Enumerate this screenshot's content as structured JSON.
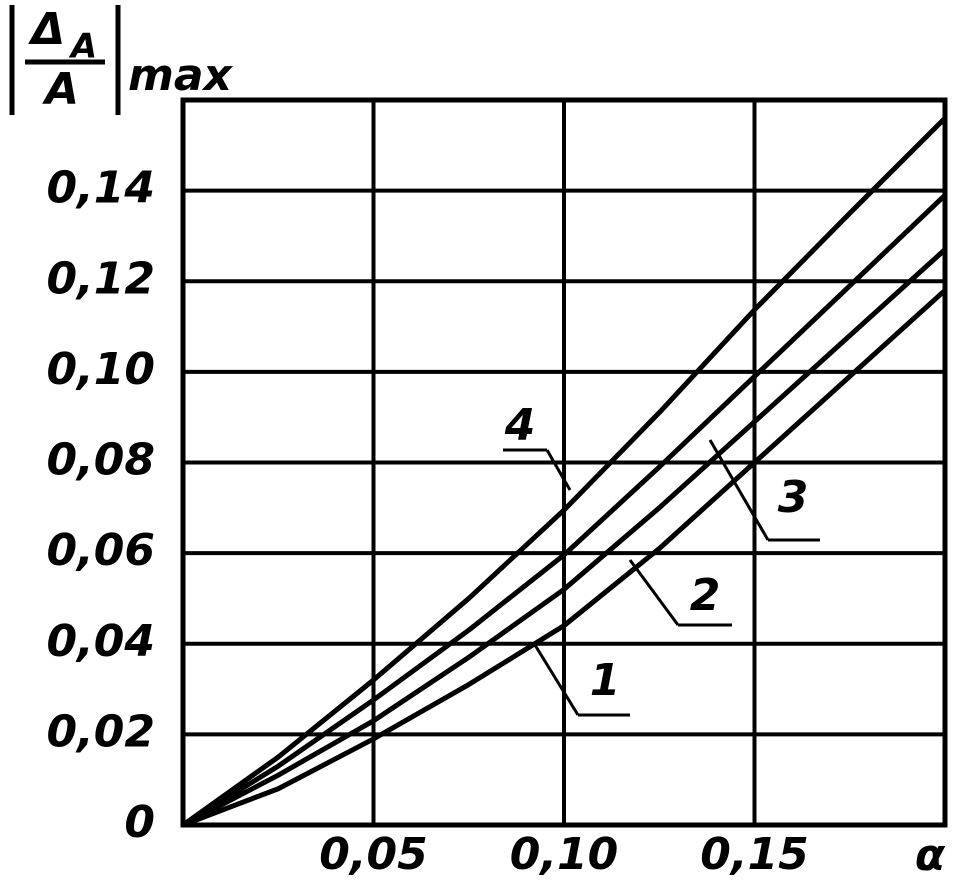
{
  "chart_data": {
    "type": "line",
    "ylabel_parts": {
      "numerator": "Δ",
      "numerator_sub": "A",
      "denominator": "A",
      "suffix": "max"
    },
    "xlabel": "α",
    "x": [
      0,
      0.025,
      0.05,
      0.075,
      0.1,
      0.125,
      0.15,
      0.175,
      0.2
    ],
    "series": [
      {
        "name": "1",
        "color": "#000000",
        "values": [
          0,
          0.008,
          0.019,
          0.031,
          0.044,
          0.061,
          0.08,
          0.099,
          0.118
        ]
      },
      {
        "name": "2",
        "color": "#000000",
        "values": [
          0,
          0.011,
          0.023,
          0.037,
          0.052,
          0.07,
          0.089,
          0.108,
          0.127
        ]
      },
      {
        "name": "3",
        "color": "#000000",
        "values": [
          0,
          0.013,
          0.0276,
          0.043,
          0.0596,
          0.079,
          0.099,
          0.119,
          0.139
        ]
      },
      {
        "name": "4",
        "color": "#000000",
        "values": [
          0,
          0.015,
          0.032,
          0.05,
          0.0695,
          0.091,
          0.1137,
          0.135,
          0.156
        ]
      }
    ],
    "xlim": [
      0,
      0.2
    ],
    "ylim": [
      0,
      0.16
    ],
    "xticks": [
      {
        "value": 0.05,
        "label": "0,05"
      },
      {
        "value": 0.1,
        "label": "0,10"
      },
      {
        "value": 0.15,
        "label": "0,15"
      }
    ],
    "yticks": [
      0,
      {
        "value": 0.02,
        "label": "0,02"
      },
      {
        "value": 0.04,
        "label": "0,04"
      },
      {
        "value": 0.06,
        "label": "0,06"
      },
      {
        "value": 0.08,
        "label": "0,08"
      },
      {
        "value": 0.1,
        "label": "0,10"
      },
      {
        "value": 0.12,
        "label": "0,12"
      },
      {
        "value": 0.14,
        "label": "0,14"
      }
    ],
    "grid": true
  }
}
